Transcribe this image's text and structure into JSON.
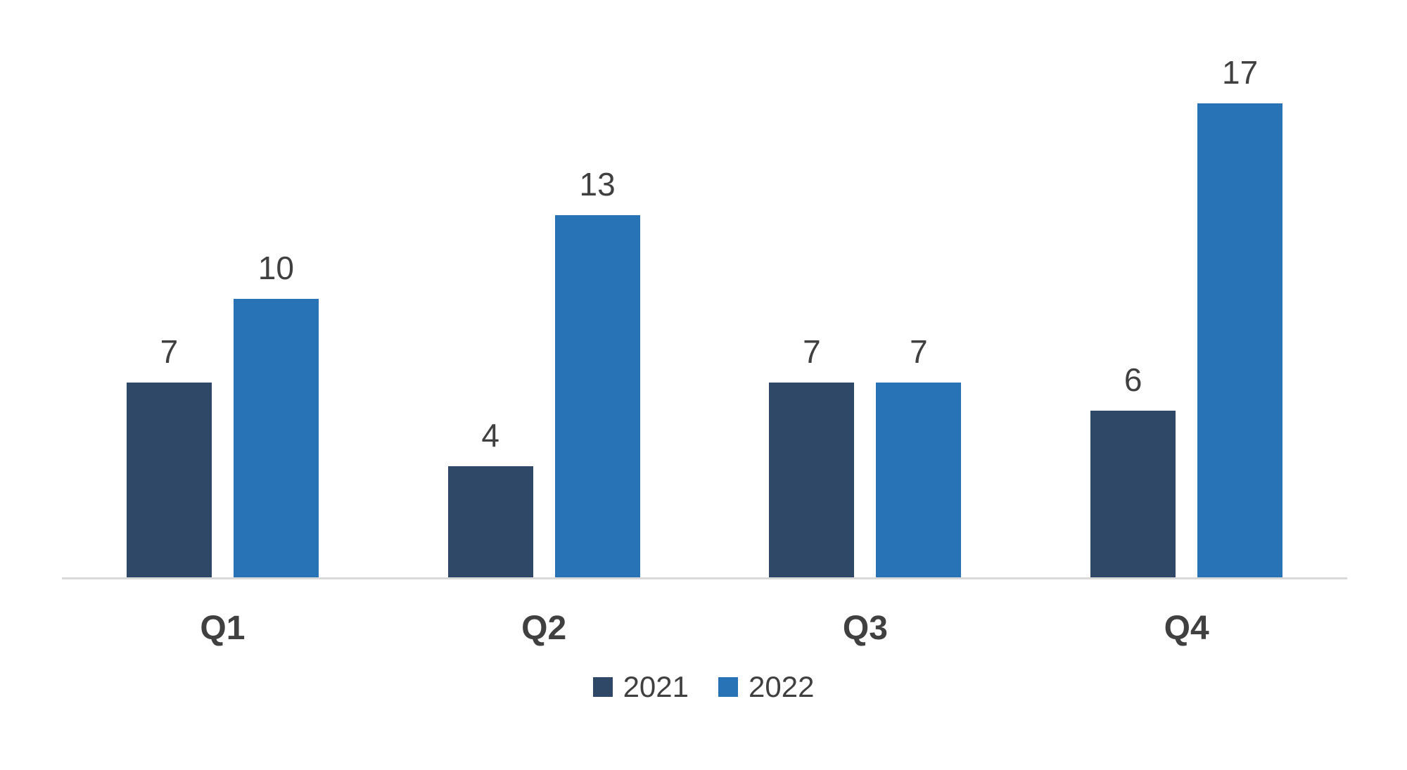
{
  "chart_data": {
    "type": "bar",
    "categories": [
      "Q1",
      "Q2",
      "Q3",
      "Q4"
    ],
    "series": [
      {
        "name": "2021",
        "color": "#2F4868",
        "values": [
          7,
          4,
          7,
          6
        ]
      },
      {
        "name": "2022",
        "color": "#2773B5",
        "values": [
          10,
          13,
          7,
          17
        ]
      }
    ],
    "title": "",
    "xlabel": "",
    "ylabel": "",
    "ylim": [
      0,
      17
    ],
    "grid": false,
    "data_labels": true,
    "legend_position": "bottom"
  },
  "colors": {
    "background": "#FFFFFF",
    "axis_line": "#D9D9D9",
    "label_text": "#404040"
  }
}
